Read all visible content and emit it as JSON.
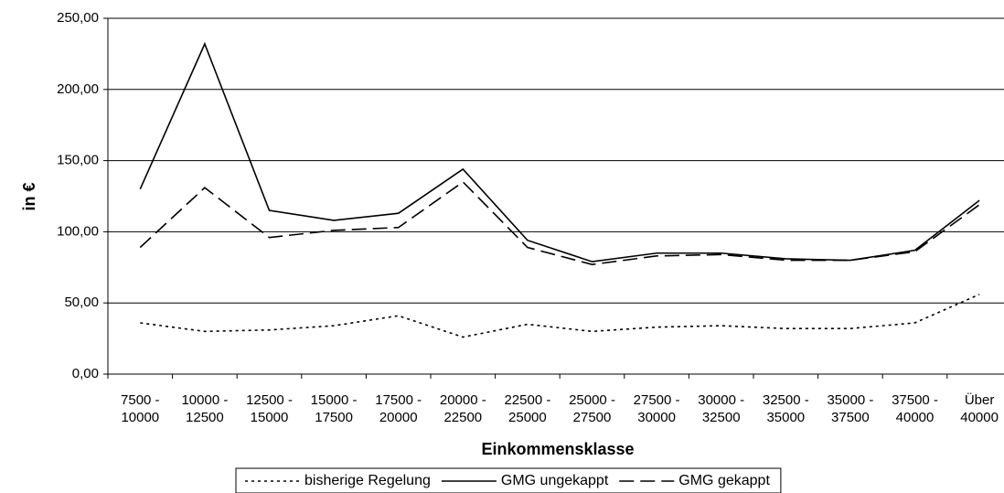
{
  "chart_data": {
    "type": "line",
    "x_label": "Einkommensklasse",
    "y_label": "in €",
    "categories": [
      "7500 - 10000",
      "10000 - 12500",
      "12500 - 15000",
      "15000 - 17500",
      "17500 - 20000",
      "20000 - 22500",
      "22500 - 25000",
      "25000 - 27500",
      "27500 - 30000",
      "30000 - 32500",
      "32500 - 35000",
      "35000 - 37500",
      "37500 - 40000",
      "Über 40000"
    ],
    "series": [
      {
        "name": "bisherige Regelung",
        "color": "#000000",
        "dash": "dotted",
        "values": [
          36,
          30,
          31,
          34,
          41,
          26,
          35,
          30,
          33,
          34,
          32,
          32,
          36,
          56
        ]
      },
      {
        "name": "GMG ungekappt",
        "color": "#000000",
        "dash": "solid",
        "values": [
          130,
          232,
          115,
          108,
          113,
          144,
          94,
          79,
          85,
          85,
          81,
          80,
          87,
          122
        ]
      },
      {
        "name": "GMG gekappt",
        "color": "#000000",
        "dash": "dashed",
        "values": [
          89,
          131,
          96,
          101,
          103,
          135,
          89,
          77,
          83,
          84,
          80,
          80,
          86,
          119
        ]
      }
    ],
    "ylim": [
      0,
      250
    ],
    "yticks": [
      {
        "value": 0,
        "label": "0,00"
      },
      {
        "value": 50,
        "label": "50,00"
      },
      {
        "value": 100,
        "label": "100,00"
      },
      {
        "value": 150,
        "label": "150,00"
      },
      {
        "value": 200,
        "label": "200,00"
      },
      {
        "value": 250,
        "label": "250,00"
      }
    ],
    "grid": true,
    "legend": "bottom"
  }
}
